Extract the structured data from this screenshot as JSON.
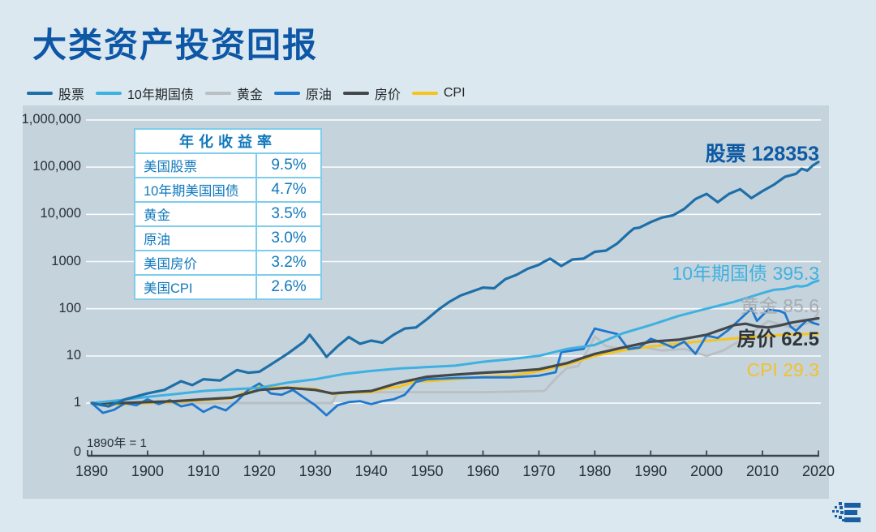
{
  "title": "大类资产投资回报",
  "colors": {
    "page_bg": "#dce8ef",
    "panel_bg": "#c5d3dc",
    "title": "#0d57a7",
    "grid": "#ffffff",
    "axis": "#3a444c",
    "tick_text": "#272f36",
    "table_border": "#7ecdec",
    "table_text": "#1079bd",
    "logo": "#1b5fa3"
  },
  "legend": {
    "items": [
      {
        "label": "股票",
        "color": "#1e6fa8"
      },
      {
        "label": "10年期国债",
        "color": "#3db1e2"
      },
      {
        "label": "黄金",
        "color": "#b9bfc3"
      },
      {
        "label": "原油",
        "color": "#1f78cd"
      },
      {
        "label": "房价",
        "color": "#42484c"
      },
      {
        "label": "CPI",
        "color": "#f5c420"
      }
    ]
  },
  "table": {
    "header": "年化收益率",
    "rows": [
      {
        "label": "美国股票",
        "value": "9.5%"
      },
      {
        "label": "10年期美国国债",
        "value": "4.7%"
      },
      {
        "label": "黄金",
        "value": "3.5%"
      },
      {
        "label": "原油",
        "value": "3.0%"
      },
      {
        "label": "美国房价",
        "value": "3.2%"
      },
      {
        "label": "美国CPI",
        "value": "2.6%"
      }
    ]
  },
  "chart_data": {
    "type": "line",
    "y_axis": {
      "scale": "log",
      "tick_labels": [
        "1,000,000",
        "100,000",
        "10,000",
        "1000",
        "100",
        "10",
        "1"
      ],
      "zero_label": "0",
      "range": [
        1,
        1000000
      ],
      "grid": true
    },
    "x_axis": {
      "ticks": [
        1890,
        1900,
        1910,
        1920,
        1930,
        1940,
        1950,
        1960,
        1970,
        1980,
        1990,
        2000,
        2010,
        2020
      ],
      "range": [
        1890,
        2020
      ]
    },
    "baseline_note": "1890年 = 1",
    "legend_position": "top-left",
    "draw_order": [
      2,
      5,
      3,
      4,
      1,
      0
    ],
    "series": [
      {
        "name": "股票",
        "color": "#1e6fa8",
        "end_label": "股票 128353",
        "end_value": 128353,
        "annualized_return": "9.5%",
        "points": [
          [
            1890,
            1
          ],
          [
            1893,
            0.85
          ],
          [
            1896,
            1.2
          ],
          [
            1900,
            1.6
          ],
          [
            1903,
            1.9
          ],
          [
            1906,
            2.9
          ],
          [
            1908,
            2.4
          ],
          [
            1910,
            3.2
          ],
          [
            1913,
            3.0
          ],
          [
            1916,
            5.0
          ],
          [
            1918,
            4.4
          ],
          [
            1920,
            4.6
          ],
          [
            1922,
            6.5
          ],
          [
            1925,
            11
          ],
          [
            1928,
            20
          ],
          [
            1929,
            28
          ],
          [
            1931,
            14
          ],
          [
            1932,
            9.5
          ],
          [
            1934,
            16
          ],
          [
            1936,
            25
          ],
          [
            1938,
            18
          ],
          [
            1940,
            21
          ],
          [
            1942,
            19
          ],
          [
            1944,
            28
          ],
          [
            1946,
            38
          ],
          [
            1948,
            40
          ],
          [
            1950,
            60
          ],
          [
            1952,
            95
          ],
          [
            1954,
            140
          ],
          [
            1956,
            190
          ],
          [
            1958,
            230
          ],
          [
            1960,
            280
          ],
          [
            1962,
            270
          ],
          [
            1964,
            420
          ],
          [
            1966,
            520
          ],
          [
            1968,
            700
          ],
          [
            1970,
            850
          ],
          [
            1971,
            1000
          ],
          [
            1972,
            1150
          ],
          [
            1974,
            800
          ],
          [
            1976,
            1100
          ],
          [
            1978,
            1150
          ],
          [
            1980,
            1600
          ],
          [
            1982,
            1700
          ],
          [
            1984,
            2400
          ],
          [
            1986,
            4000
          ],
          [
            1987,
            5000
          ],
          [
            1988,
            5200
          ],
          [
            1990,
            6800
          ],
          [
            1992,
            8500
          ],
          [
            1994,
            9500
          ],
          [
            1996,
            13000
          ],
          [
            1998,
            21000
          ],
          [
            2000,
            27000
          ],
          [
            2002,
            18000
          ],
          [
            2004,
            27000
          ],
          [
            2006,
            34000
          ],
          [
            2008,
            22000
          ],
          [
            2010,
            31000
          ],
          [
            2012,
            42000
          ],
          [
            2014,
            62000
          ],
          [
            2016,
            72000
          ],
          [
            2017,
            92000
          ],
          [
            2018,
            84000
          ],
          [
            2019,
            108000
          ],
          [
            2020,
            128353
          ]
        ]
      },
      {
        "name": "10年期国债",
        "color": "#3db1e2",
        "end_label": "10年期国债 395.3",
        "end_value": 395.3,
        "annualized_return": "4.7%",
        "points": [
          [
            1890,
            1
          ],
          [
            1895,
            1.15
          ],
          [
            1900,
            1.35
          ],
          [
            1905,
            1.55
          ],
          [
            1910,
            1.8
          ],
          [
            1915,
            1.95
          ],
          [
            1920,
            2.1
          ],
          [
            1925,
            2.7
          ],
          [
            1930,
            3.2
          ],
          [
            1935,
            4.1
          ],
          [
            1940,
            4.8
          ],
          [
            1945,
            5.4
          ],
          [
            1950,
            5.8
          ],
          [
            1955,
            6.2
          ],
          [
            1960,
            7.5
          ],
          [
            1965,
            8.5
          ],
          [
            1970,
            10
          ],
          [
            1975,
            14
          ],
          [
            1980,
            17
          ],
          [
            1985,
            30
          ],
          [
            1990,
            45
          ],
          [
            1995,
            70
          ],
          [
            2000,
            100
          ],
          [
            2005,
            140
          ],
          [
            2008,
            180
          ],
          [
            2010,
            215
          ],
          [
            2012,
            250
          ],
          [
            2014,
            262
          ],
          [
            2016,
            300
          ],
          [
            2017,
            295
          ],
          [
            2018,
            310
          ],
          [
            2019,
            360
          ],
          [
            2020,
            395.3
          ]
        ]
      },
      {
        "name": "黄金",
        "color": "#b9bfc3",
        "end_label": "黄金 85.6",
        "end_value": 85.6,
        "annualized_return": "3.5%",
        "points": [
          [
            1890,
            1
          ],
          [
            1900,
            1
          ],
          [
            1910,
            1
          ],
          [
            1920,
            1
          ],
          [
            1933,
            1
          ],
          [
            1934,
            1.7
          ],
          [
            1940,
            1.7
          ],
          [
            1950,
            1.7
          ],
          [
            1960,
            1.7
          ],
          [
            1971,
            1.8
          ],
          [
            1973,
            3.3
          ],
          [
            1975,
            5.5
          ],
          [
            1977,
            6
          ],
          [
            1979,
            15
          ],
          [
            1980,
            26
          ],
          [
            1982,
            16
          ],
          [
            1985,
            14
          ],
          [
            1988,
            16
          ],
          [
            1992,
            13
          ],
          [
            1996,
            14
          ],
          [
            2000,
            10
          ],
          [
            2003,
            13
          ],
          [
            2006,
            21
          ],
          [
            2008,
            30
          ],
          [
            2011,
            55
          ],
          [
            2013,
            47
          ],
          [
            2015,
            40
          ],
          [
            2017,
            46
          ],
          [
            2019,
            52
          ],
          [
            2020,
            85.6
          ]
        ]
      },
      {
        "name": "原油",
        "color": "#1f78cd",
        "end_label": null,
        "end_value": 46,
        "annualized_return": "3.0%",
        "points": [
          [
            1890,
            1
          ],
          [
            1892,
            0.62
          ],
          [
            1894,
            0.72
          ],
          [
            1896,
            1.0
          ],
          [
            1898,
            0.9
          ],
          [
            1900,
            1.2
          ],
          [
            1902,
            0.95
          ],
          [
            1904,
            1.15
          ],
          [
            1906,
            0.85
          ],
          [
            1908,
            0.95
          ],
          [
            1910,
            0.65
          ],
          [
            1912,
            0.85
          ],
          [
            1914,
            0.7
          ],
          [
            1916,
            1.1
          ],
          [
            1918,
            1.9
          ],
          [
            1920,
            2.6
          ],
          [
            1922,
            1.6
          ],
          [
            1924,
            1.5
          ],
          [
            1926,
            1.9
          ],
          [
            1928,
            1.3
          ],
          [
            1930,
            0.9
          ],
          [
            1932,
            0.55
          ],
          [
            1934,
            0.9
          ],
          [
            1936,
            1.05
          ],
          [
            1938,
            1.1
          ],
          [
            1940,
            0.95
          ],
          [
            1942,
            1.1
          ],
          [
            1944,
            1.2
          ],
          [
            1946,
            1.5
          ],
          [
            1948,
            2.8
          ],
          [
            1950,
            3.2
          ],
          [
            1955,
            3.4
          ],
          [
            1960,
            3.5
          ],
          [
            1965,
            3.5
          ],
          [
            1970,
            3.8
          ],
          [
            1973,
            4.5
          ],
          [
            1974,
            12
          ],
          [
            1976,
            13
          ],
          [
            1978,
            14
          ],
          [
            1980,
            38
          ],
          [
            1982,
            33
          ],
          [
            1984,
            29
          ],
          [
            1986,
            14
          ],
          [
            1988,
            15
          ],
          [
            1990,
            23
          ],
          [
            1992,
            19
          ],
          [
            1994,
            15
          ],
          [
            1996,
            20
          ],
          [
            1998,
            11
          ],
          [
            2000,
            27
          ],
          [
            2002,
            24
          ],
          [
            2004,
            36
          ],
          [
            2006,
            60
          ],
          [
            2008,
            100
          ],
          [
            2009,
            55
          ],
          [
            2011,
            95
          ],
          [
            2013,
            90
          ],
          [
            2014,
            80
          ],
          [
            2015,
            42
          ],
          [
            2016,
            34
          ],
          [
            2018,
            58
          ],
          [
            2019,
            50
          ],
          [
            2020,
            46
          ]
        ]
      },
      {
        "name": "房价",
        "color": "#42484c",
        "end_label": "房价 62.5",
        "end_value": 62.5,
        "annualized_return": "3.2%",
        "points": [
          [
            1890,
            1
          ],
          [
            1895,
            1
          ],
          [
            1900,
            1.05
          ],
          [
            1905,
            1.1
          ],
          [
            1910,
            1.2
          ],
          [
            1915,
            1.3
          ],
          [
            1920,
            1.9
          ],
          [
            1925,
            2.1
          ],
          [
            1930,
            1.9
          ],
          [
            1933,
            1.6
          ],
          [
            1936,
            1.7
          ],
          [
            1940,
            1.8
          ],
          [
            1945,
            2.7
          ],
          [
            1950,
            3.6
          ],
          [
            1955,
            4.0
          ],
          [
            1960,
            4.4
          ],
          [
            1965,
            4.7
          ],
          [
            1970,
            5.2
          ],
          [
            1975,
            7
          ],
          [
            1980,
            11
          ],
          [
            1985,
            15
          ],
          [
            1990,
            20
          ],
          [
            1995,
            22
          ],
          [
            2000,
            28
          ],
          [
            2005,
            45
          ],
          [
            2007,
            48
          ],
          [
            2009,
            42
          ],
          [
            2011,
            40
          ],
          [
            2013,
            44
          ],
          [
            2015,
            50
          ],
          [
            2017,
            55
          ],
          [
            2020,
            62.5
          ]
        ]
      },
      {
        "name": "CPI",
        "color": "#f5c420",
        "end_label": "CPI 29.3",
        "end_value": 29.3,
        "annualized_return": "2.6%",
        "points": [
          [
            1890,
            1
          ],
          [
            1895,
            0.93
          ],
          [
            1900,
            1.0
          ],
          [
            1905,
            1.05
          ],
          [
            1910,
            1.15
          ],
          [
            1915,
            1.25
          ],
          [
            1917,
            1.6
          ],
          [
            1920,
            2.4
          ],
          [
            1922,
            2.1
          ],
          [
            1925,
            2.15
          ],
          [
            1930,
            2.0
          ],
          [
            1933,
            1.55
          ],
          [
            1936,
            1.65
          ],
          [
            1940,
            1.7
          ],
          [
            1943,
            2.1
          ],
          [
            1945,
            2.2
          ],
          [
            1948,
            2.9
          ],
          [
            1950,
            2.9
          ],
          [
            1955,
            3.2
          ],
          [
            1960,
            3.6
          ],
          [
            1965,
            3.8
          ],
          [
            1970,
            4.7
          ],
          [
            1975,
            6.5
          ],
          [
            1980,
            10
          ],
          [
            1985,
            13
          ],
          [
            1990,
            15.7
          ],
          [
            1995,
            18.3
          ],
          [
            2000,
            20.7
          ],
          [
            2005,
            23.5
          ],
          [
            2010,
            26.2
          ],
          [
            2015,
            28.5
          ],
          [
            2020,
            29.3
          ]
        ]
      }
    ]
  }
}
